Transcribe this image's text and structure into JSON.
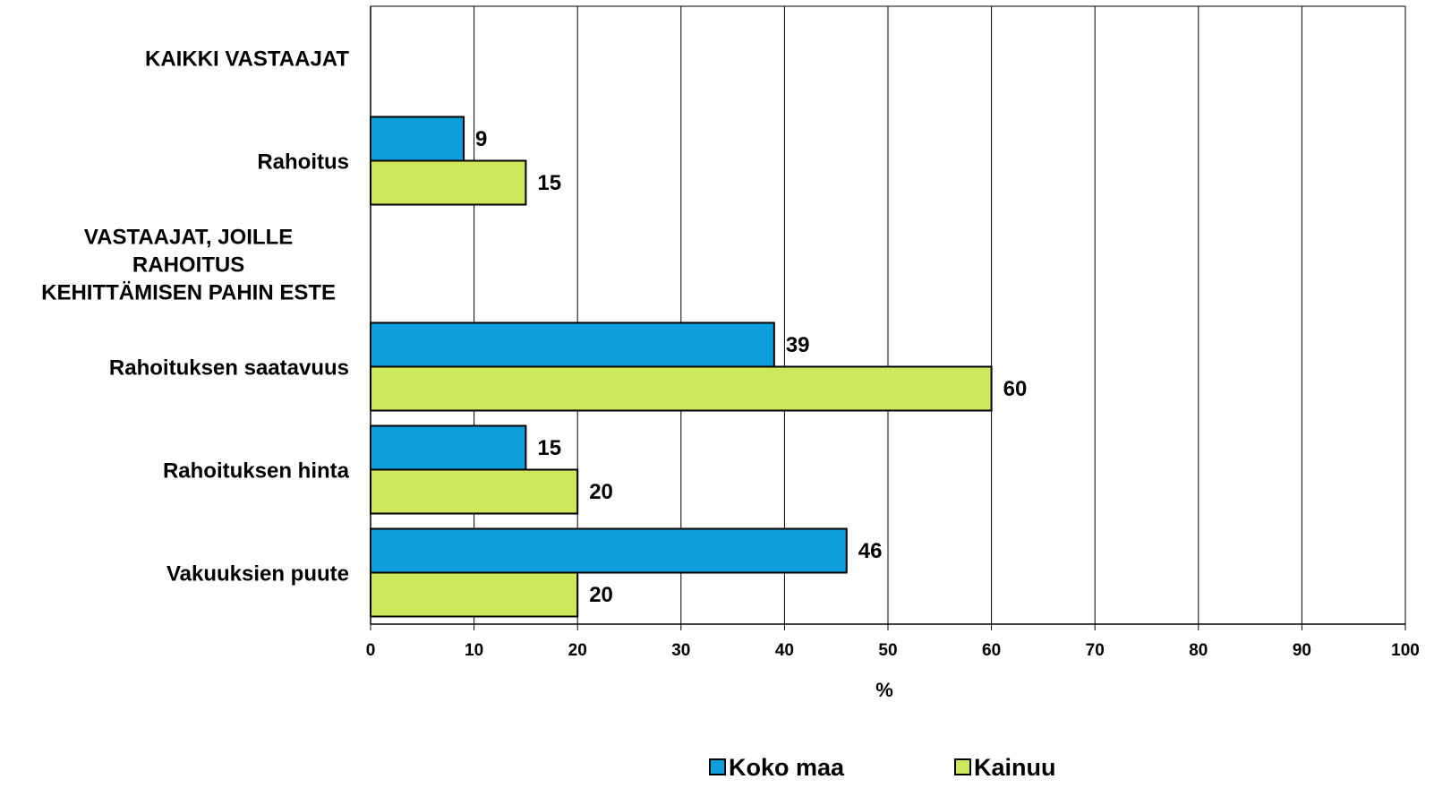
{
  "chart_data": {
    "type": "bar",
    "orientation": "horizontal",
    "categories": [
      "KAIKKI VASTAAJAT",
      "Rahoitus",
      "VASTAAJAT, JOILLE RAHOITUS KEHITTÄMISEN PAHIN ESTE",
      "Rahoituksen saatavuus",
      "Rahoituksen hinta",
      "Vakuuksien puute"
    ],
    "category_lines": [
      [
        "KAIKKI VASTAAJAT"
      ],
      [
        "Rahoitus"
      ],
      [
        "VASTAAJAT, JOILLE",
        "RAHOITUS",
        "KEHITTÄMISEN PAHIN ESTE"
      ],
      [
        "Rahoituksen saatavuus"
      ],
      [
        "Rahoituksen hinta"
      ],
      [
        "Vakuuksien puute"
      ]
    ],
    "series": [
      {
        "name": "Koko maa",
        "color": "#0d9fdb",
        "values": [
          null,
          9,
          null,
          39,
          15,
          46
        ]
      },
      {
        "name": "Kainuu",
        "color": "#cde85a",
        "values": [
          null,
          15,
          null,
          60,
          20,
          20
        ]
      }
    ],
    "xlim": [
      0,
      100
    ],
    "xticks": [
      0,
      10,
      20,
      30,
      40,
      50,
      60,
      70,
      80,
      90,
      100
    ],
    "xlabel": "%",
    "ylabel": "",
    "title": "",
    "grid": "vertical",
    "legend_position": "bottom"
  }
}
